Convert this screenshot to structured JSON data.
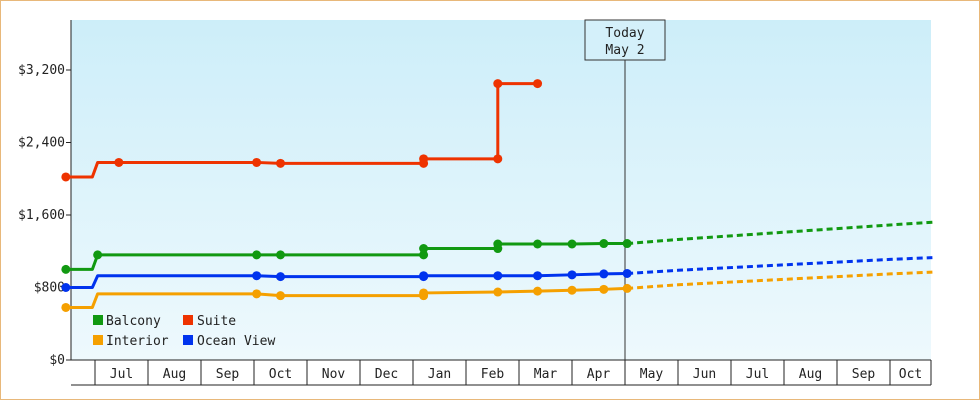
{
  "chart_data": {
    "type": "line",
    "title": "",
    "xlabel": "",
    "ylabel": "",
    "ylim": [
      0,
      3200
    ],
    "y_ticks": [
      {
        "value": 0,
        "label": "$0"
      },
      {
        "value": 800,
        "label": "$800"
      },
      {
        "value": 1600,
        "label": "$1,600"
      },
      {
        "value": 2400,
        "label": "$2,400"
      },
      {
        "value": 3200,
        "label": "$3,200"
      }
    ],
    "x_months": [
      "Jul",
      "Aug",
      "Sep",
      "Oct",
      "Nov",
      "Dec",
      "Jan",
      "Feb",
      "Mar",
      "Apr",
      "May",
      "Jun",
      "Jul",
      "Aug",
      "Sep",
      "Oct"
    ],
    "today": {
      "line1": "Today",
      "line2": "May 2",
      "month_pos": 10.04
    },
    "grid": "vertical month separators",
    "legend": {
      "placement": "bottom-left"
    },
    "series": [
      {
        "name": "Balcony",
        "color": "#119911",
        "values": [
          [
            -0.55,
            1000
          ],
          [
            -0.05,
            1000
          ],
          [
            -0.05,
            1000
          ],
          [
            0.05,
            1160
          ],
          [
            3.05,
            1160
          ],
          [
            3.5,
            1160
          ],
          [
            6.2,
            1160
          ],
          [
            6.2,
            1230
          ],
          [
            7.6,
            1230
          ],
          [
            7.6,
            1280
          ],
          [
            8.35,
            1280
          ],
          [
            9.0,
            1280
          ],
          [
            9.6,
            1285
          ],
          [
            10.04,
            1285
          ]
        ],
        "forecast": [
          [
            10.04,
            1285
          ],
          [
            11.0,
            1330
          ],
          [
            12.0,
            1370
          ],
          [
            13.0,
            1410
          ],
          [
            14.0,
            1450
          ],
          [
            15.0,
            1490
          ],
          [
            15.8,
            1520
          ]
        ]
      },
      {
        "name": "Suite",
        "color": "#ee3300",
        "values": [
          [
            -0.55,
            2020
          ],
          [
            -0.05,
            2020
          ],
          [
            0.05,
            2180
          ],
          [
            0.45,
            2180
          ],
          [
            3.05,
            2180
          ],
          [
            3.5,
            2170
          ],
          [
            6.2,
            2170
          ],
          [
            6.2,
            2220
          ],
          [
            7.6,
            2220
          ],
          [
            7.6,
            3050
          ],
          [
            8.35,
            3050
          ]
        ],
        "forecast": []
      },
      {
        "name": "Interior",
        "color": "#f5a000",
        "values": [
          [
            -0.55,
            580
          ],
          [
            -0.05,
            580
          ],
          [
            0.05,
            730
          ],
          [
            3.05,
            730
          ],
          [
            3.5,
            710
          ],
          [
            6.2,
            710
          ],
          [
            6.2,
            740
          ],
          [
            7.6,
            750
          ],
          [
            8.35,
            760
          ],
          [
            9.0,
            770
          ],
          [
            9.6,
            780
          ],
          [
            10.04,
            790
          ]
        ],
        "forecast": [
          [
            10.04,
            790
          ],
          [
            11.0,
            830
          ],
          [
            12.0,
            860
          ],
          [
            13.0,
            890
          ],
          [
            14.0,
            920
          ],
          [
            15.0,
            950
          ],
          [
            15.8,
            970
          ]
        ]
      },
      {
        "name": "Ocean View",
        "color": "#0033ee",
        "values": [
          [
            -0.55,
            800
          ],
          [
            -0.05,
            800
          ],
          [
            0.05,
            930
          ],
          [
            3.05,
            930
          ],
          [
            3.5,
            920
          ],
          [
            6.2,
            920
          ],
          [
            6.2,
            930
          ],
          [
            7.6,
            930
          ],
          [
            8.35,
            930
          ],
          [
            9.0,
            940
          ],
          [
            9.6,
            950
          ],
          [
            10.04,
            955
          ]
        ],
        "forecast": [
          [
            10.04,
            955
          ],
          [
            11.0,
            990
          ],
          [
            12.0,
            1020
          ],
          [
            13.0,
            1050
          ],
          [
            14.0,
            1080
          ],
          [
            15.0,
            1110
          ],
          [
            15.8,
            1130
          ]
        ]
      }
    ]
  }
}
